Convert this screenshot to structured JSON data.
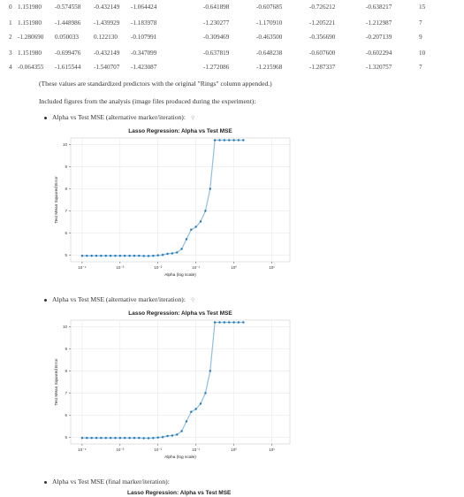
{
  "table": {
    "rows": [
      {
        "idx": "0",
        "c1": "1.151980",
        "c2": "-0.574558",
        "c3": "-0.432149",
        "c4": "-1.064424",
        "c5": "-0.641898",
        "c6": "-0.607685",
        "c7": "-0.726212",
        "c8": "-0.638217",
        "rings": "15"
      },
      {
        "idx": "1",
        "c1": "1.151980",
        "c2": "-1.448986",
        "c3": "-1.439929",
        "c4": "-1.183978",
        "c5": "-1.230277",
        "c6": "-1.170910",
        "c7": "-1.205221",
        "c8": "-1.212987",
        "rings": "7"
      },
      {
        "idx": "2",
        "c1": "-1.280690",
        "c2": "0.050033",
        "c3": "0.122130",
        "c4": "-0.107991",
        "c5": "-0.309469",
        "c6": "-0.463500",
        "c7": "-0.356690",
        "c8": "-0.207139",
        "rings": "9"
      },
      {
        "idx": "3",
        "c1": "1.151980",
        "c2": "-0.699476",
        "c3": "-0.432149",
        "c4": "-0.347099",
        "c5": "-0.637819",
        "c6": "-0.648238",
        "c7": "-0.607600",
        "c8": "-0.602294",
        "rings": "10"
      },
      {
        "idx": "4",
        "c1": "-0.064355",
        "c2": "-1.615544",
        "c3": "-1.540707",
        "c4": "-1.423087",
        "c5": "-1.272086",
        "c6": "-1.215968",
        "c7": "-1.287337",
        "c8": "-1.320757",
        "rings": "7"
      }
    ]
  },
  "note1": "(These values are standardized predictors with the original \"Rings\" column appended.)",
  "note2": "Included figures from the analysis (image files produced during the experiment):",
  "figures": [
    {
      "bullet": "Alpha vs Test MSE (alternative marker/iteration):",
      "link_icon": "link-icon"
    },
    {
      "bullet": "Alpha vs Test MSE (alternative marker/iteration):",
      "link_icon": "link-icon"
    },
    {
      "bullet": "Alpha vs Test MSE (final marker/iteration):",
      "link_icon": "link-icon"
    }
  ],
  "chart_data": [
    {
      "type": "line",
      "title": "Lasso Regression: Alpha vs Test MSE",
      "xlabel": "Alpha (log scale)",
      "ylabel": "Test Mean Squared Error",
      "x_scale": "log",
      "x_ticks": [
        "10⁻⁴",
        "10⁻³",
        "10⁻²",
        "10⁻¹",
        "10⁰",
        "10¹"
      ],
      "y_ticks": [
        "5",
        "6",
        "7",
        "8",
        "9",
        "10"
      ],
      "xlim": [
        5e-05,
        30
      ],
      "ylim": [
        4.7,
        10.3
      ],
      "grid": true,
      "line_color": "#8fbfe0",
      "marker_color": "#1f77b4",
      "x": [
        0.0001,
        0.000133,
        0.000178,
        0.000237,
        0.000316,
        0.000422,
        0.000562,
        0.00075,
        0.001,
        0.00133,
        0.00178,
        0.00237,
        0.00316,
        0.00422,
        0.00562,
        0.0075,
        0.01,
        0.0133,
        0.0178,
        0.0237,
        0.0316,
        0.0422,
        0.0562,
        0.075,
        0.1,
        0.133,
        0.178,
        0.237,
        0.316,
        0.422,
        0.562,
        0.75,
        1.0,
        1.33,
        1.78
      ],
      "y": [
        4.97,
        4.97,
        4.97,
        4.97,
        4.97,
        4.97,
        4.97,
        4.97,
        4.97,
        4.97,
        4.97,
        4.97,
        4.97,
        4.96,
        4.96,
        4.97,
        4.99,
        5.01,
        5.06,
        5.08,
        5.12,
        5.28,
        5.72,
        6.15,
        6.28,
        6.52,
        7.0,
        8.0,
        10.2,
        10.2,
        10.2,
        10.2,
        10.2,
        10.2,
        10.2
      ]
    },
    {
      "type": "line",
      "title": "Lasso Regression: Alpha vs Test MSE",
      "xlabel": "Alpha (log scale)",
      "ylabel": "Test Mean Squared Error",
      "x_scale": "log",
      "x_ticks": [
        "10⁻⁴",
        "10⁻³",
        "10⁻²",
        "10⁻¹",
        "10⁰",
        "10¹"
      ],
      "y_ticks": [
        "5",
        "6",
        "7",
        "8",
        "9",
        "10"
      ],
      "xlim": [
        5e-05,
        30
      ],
      "ylim": [
        4.7,
        10.3
      ],
      "grid": true,
      "line_color": "#8fbfe0",
      "marker_color": "#1f77b4",
      "x": [
        0.0001,
        0.000133,
        0.000178,
        0.000237,
        0.000316,
        0.000422,
        0.000562,
        0.00075,
        0.001,
        0.00133,
        0.00178,
        0.00237,
        0.00316,
        0.00422,
        0.00562,
        0.0075,
        0.01,
        0.0133,
        0.0178,
        0.0237,
        0.0316,
        0.0422,
        0.0562,
        0.075,
        0.1,
        0.133,
        0.178,
        0.237,
        0.316,
        0.422,
        0.562,
        0.75,
        1.0,
        1.33,
        1.78
      ],
      "y": [
        4.97,
        4.97,
        4.97,
        4.97,
        4.97,
        4.97,
        4.97,
        4.97,
        4.97,
        4.97,
        4.97,
        4.97,
        4.97,
        4.96,
        4.96,
        4.97,
        4.99,
        5.01,
        5.06,
        5.08,
        5.12,
        5.28,
        5.72,
        6.15,
        6.28,
        6.52,
        7.0,
        8.0,
        10.2,
        10.2,
        10.2,
        10.2,
        10.2,
        10.2,
        10.2
      ]
    },
    {
      "type": "line",
      "title": "Lasso Regression: Alpha vs Test MSE"
    }
  ]
}
